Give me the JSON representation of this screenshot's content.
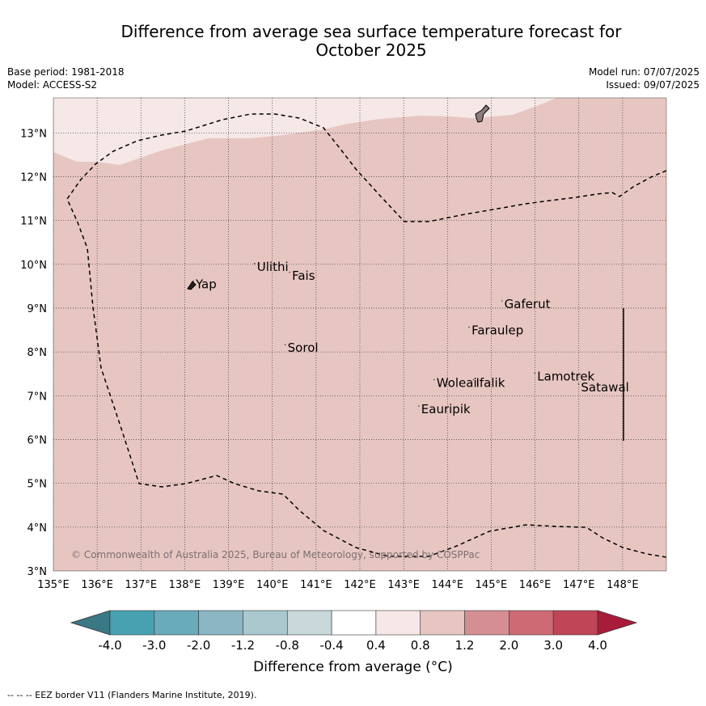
{
  "header": {
    "title_line1": "Difference from average sea surface temperature forecast for",
    "title_line2": "October 2025",
    "base_period": "Base period: 1981-2018",
    "model": "Model: ACCESS-S2",
    "model_run": "Model run: 07/07/2025",
    "issued": "Issued: 09/07/2025"
  },
  "map": {
    "lon_ticks": [
      "135°E",
      "136°E",
      "137°E",
      "138°E",
      "139°E",
      "140°E",
      "141°E",
      "142°E",
      "143°E",
      "144°E",
      "145°E",
      "146°E",
      "147°E",
      "148°E"
    ],
    "lat_ticks": [
      "3°N",
      "4°N",
      "5°N",
      "6°N",
      "7°N",
      "8°N",
      "9°N",
      "10°N",
      "11°N",
      "12°N",
      "13°N"
    ],
    "lon_range": [
      135,
      149
    ],
    "lat_range": [
      3,
      13.8
    ],
    "fill_colors": {
      "band_0.4_0.8": "#f5e8e7",
      "band_0.8_1.2": "#e7c6c2",
      "land": "#8c7d7d"
    },
    "places": [
      {
        "name": "Yap",
        "lon": 138.25,
        "lat": 9.45
      },
      {
        "name": "Ulithi",
        "lon": 139.65,
        "lat": 9.85
      },
      {
        "name": "Fais",
        "lon": 140.45,
        "lat": 9.65
      },
      {
        "name": "Sorol",
        "lon": 140.35,
        "lat": 8.0
      },
      {
        "name": "Gaferut",
        "lon": 145.3,
        "lat": 9.0
      },
      {
        "name": "Faraulep",
        "lon": 144.55,
        "lat": 8.4
      },
      {
        "name": "Lamotrek",
        "lon": 146.05,
        "lat": 7.35
      },
      {
        "name": "Woleai",
        "lon": 143.75,
        "lat": 7.2
      },
      {
        "name": "Ifalik",
        "lon": 144.65,
        "lat": 7.2
      },
      {
        "name": "Satawal",
        "lon": 147.05,
        "lat": 7.1
      },
      {
        "name": "Eauripik",
        "lon": 143.4,
        "lat": 6.6
      }
    ],
    "copyright": "© Commonwealth of Australia 2025, Bureau of Meteorology, supported by COSPPac"
  },
  "colorbar": {
    "ticks": [
      "-4.0",
      "-3.0",
      "-2.0",
      "-1.2",
      "-0.8",
      "-0.4",
      "0.4",
      "0.8",
      "1.2",
      "2.0",
      "3.0",
      "4.0"
    ],
    "colors": [
      "#3a7886",
      "#48a1b1",
      "#6aabbb",
      "#8ab7c3",
      "#aac8ce",
      "#c8d8db",
      "#ffffff",
      "#f5e8e7",
      "#e7c6c2",
      "#d58e93",
      "#cd6a73",
      "#c04556",
      "#a81c3a"
    ],
    "label": "Difference from average (°C)"
  },
  "footnote": "-- -- -- EEZ border V11 (Flanders Marine Institute, 2019)."
}
